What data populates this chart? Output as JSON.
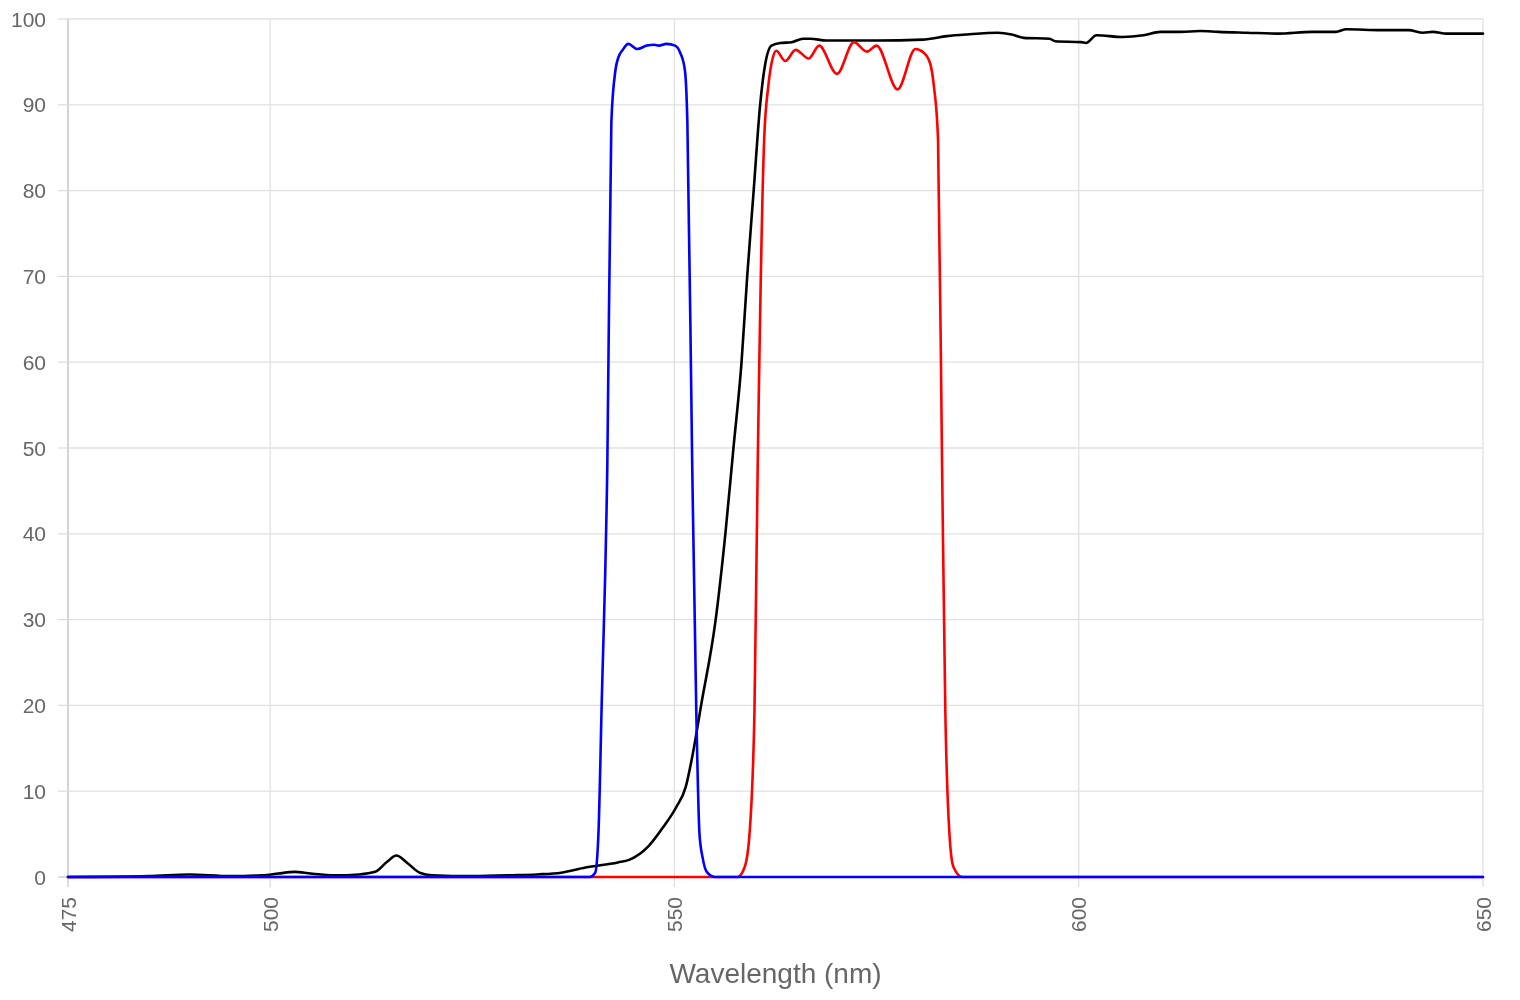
{
  "chart_data": {
    "type": "line",
    "xlabel": "Wavelength (nm)",
    "xlim": [
      475,
      650
    ],
    "xticks": [
      475,
      500,
      550,
      600,
      650
    ],
    "ylim": [
      0,
      100
    ],
    "yticks": [
      0,
      10,
      20,
      30,
      40,
      50,
      60,
      70,
      80,
      90,
      100
    ],
    "grid": true,
    "series": [
      {
        "color": "#000000",
        "x": [
          475,
          485,
          490,
          495,
          499,
          501,
          503,
          505,
          508,
          511,
          513,
          514.5,
          515.6,
          517,
          518.5,
          520,
          525,
          530,
          533,
          536,
          539,
          543,
          544.4,
          546.8,
          548.6,
          550.2,
          551.4,
          552.3,
          553.3,
          555.1,
          556.3,
          557.3,
          558.3,
          559,
          559.8,
          560.6,
          561.1,
          562,
          563.1,
          564.5,
          565.9,
          566.8,
          568.8,
          575,
          580.7,
          583.7,
          586.2,
          590,
          591.7,
          593.2,
          596.4,
          597.1,
          600.3,
          600.9,
          602.2,
          605.4,
          608,
          610.1,
          612.6,
          615,
          617.3,
          620.8,
          624.6,
          628.9,
          631.8,
          633.1,
          637.4,
          640.8,
          642.6,
          643.8,
          645.5,
          650
        ],
        "values": [
          0,
          0.1,
          0.3,
          0.1,
          0.2,
          0.4,
          0.6,
          0.4,
          0.2,
          0.3,
          0.6,
          1.8,
          2.5,
          1.6,
          0.5,
          0.2,
          0.1,
          0.2,
          0.3,
          0.5,
          1.1,
          1.7,
          2.0,
          3.6,
          5.8,
          8.1,
          10.5,
          14.5,
          20,
          30,
          40,
          50,
          60,
          70,
          80,
          90,
          94,
          96.9,
          97.2,
          97.3,
          97.7,
          97.7,
          97.5,
          97.5,
          97.6,
          98.0,
          98.2,
          98.4,
          98.2,
          97.8,
          97.7,
          97.4,
          97.3,
          97.2,
          98.1,
          97.9,
          98.1,
          98.5,
          98.5,
          98.6,
          98.5,
          98.4,
          98.3,
          98.5,
          98.5,
          98.8,
          98.7,
          98.7,
          98.4,
          98.5,
          98.3,
          98.3
        ]
      },
      {
        "color": "#ff0000",
        "x": [
          475,
          557.8,
          558.7,
          559.3,
          559.9,
          560.3,
          561.1,
          561.6,
          562.2,
          562.6,
          563.7,
          565,
          566.6,
          567.9,
          570.1,
          572.2,
          573.8,
          575,
          577.6,
          579.8,
          580.8,
          581.6,
          582.1,
          582.6,
          583.1,
          583.5,
          584,
          584.5,
          585.6,
          650
        ],
        "values": [
          0,
          0,
          1.2,
          5.2,
          19.5,
          48,
          86,
          92.1,
          95.6,
          96.3,
          95.1,
          96.4,
          95.4,
          96.9,
          93.6,
          97.3,
          96.2,
          96.9,
          91.8,
          96.5,
          96.1,
          94.9,
          92.1,
          86,
          48,
          19.5,
          5.2,
          1.2,
          0,
          0
        ]
      },
      {
        "color": "#0000ff",
        "x": [
          475,
          539.5,
          540.2,
          540.6,
          541,
          541.7,
          542.2,
          542.7,
          543.1,
          543.6,
          544.3,
          545.4,
          546.6,
          547.5,
          548.1,
          549,
          550.1,
          550.7,
          551.3,
          551.6,
          552.2,
          552.7,
          553.1,
          553.5,
          554,
          555,
          650
        ],
        "values": [
          0,
          0,
          0.5,
          5,
          20,
          48,
          88,
          94,
          95.6,
          96.4,
          97.1,
          96.5,
          96.9,
          97,
          96.9,
          97.1,
          96.9,
          96.1,
          94,
          88,
          48,
          19.5,
          5,
          2.2,
          0.6,
          0,
          0
        ]
      }
    ]
  }
}
